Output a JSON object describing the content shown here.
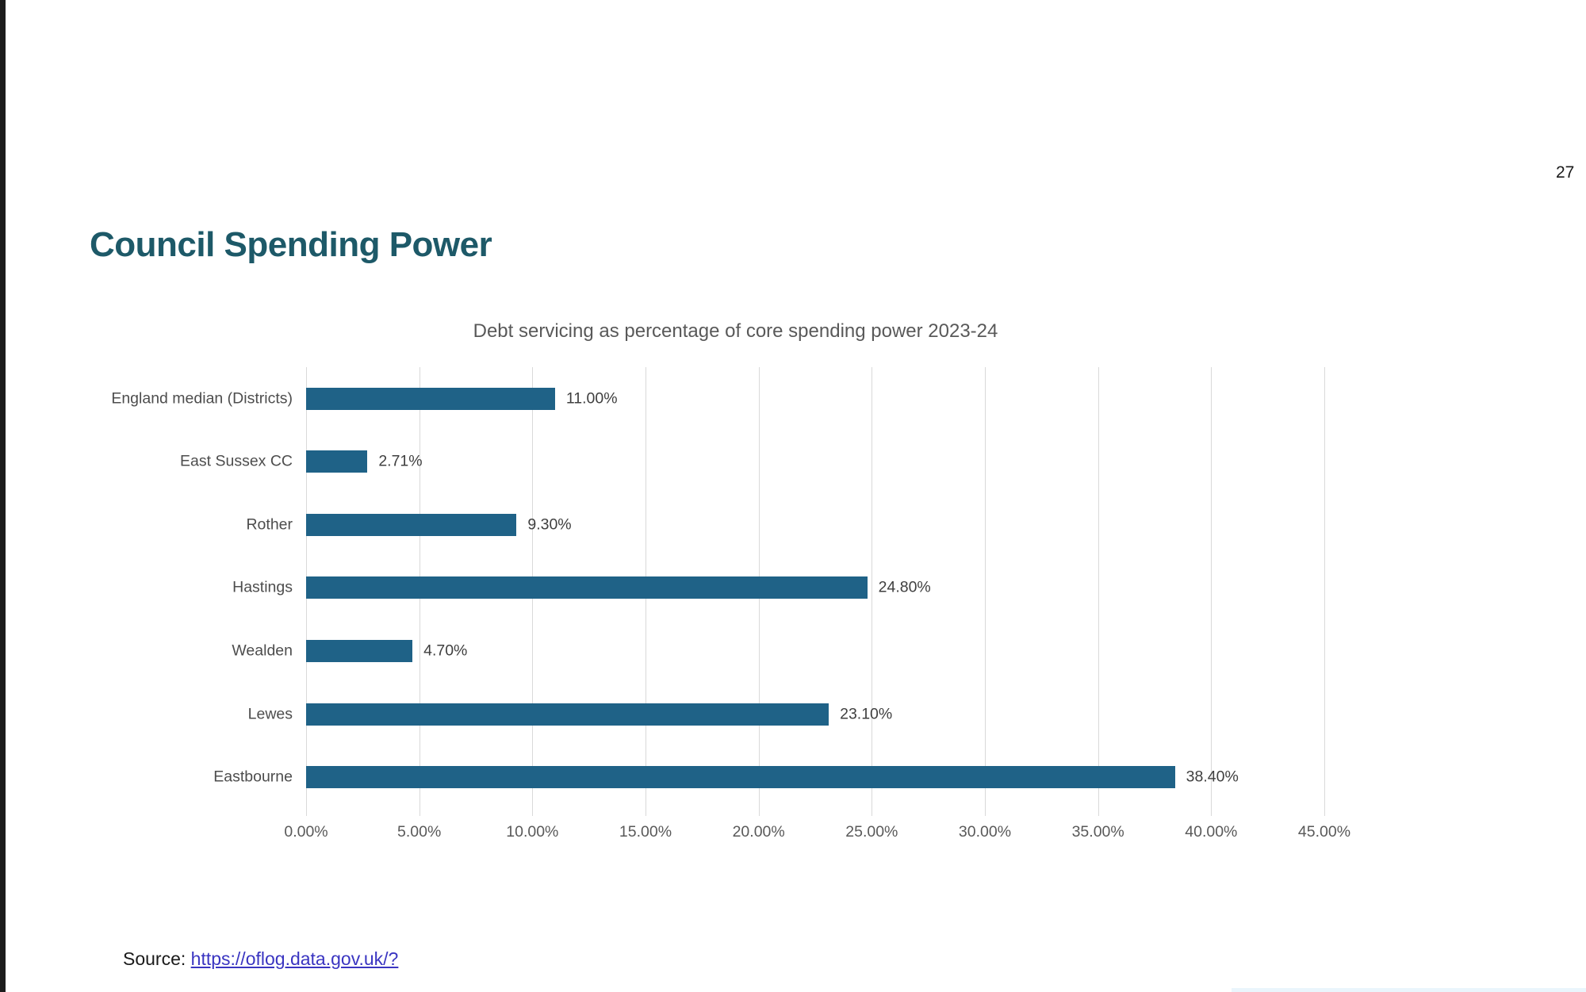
{
  "page": {
    "number": "27",
    "heading": "Council Spending Power",
    "accent_color": "#1d5968"
  },
  "chart_data": {
    "type": "bar",
    "orientation": "horizontal",
    "title": "Debt servicing as percentage of core spending power 2023-24",
    "categories": [
      "England median (Districts)",
      "East Sussex CC",
      "Rother",
      "Hastings",
      "Wealden",
      "Lewes",
      "Eastbourne"
    ],
    "values": [
      11.0,
      2.71,
      9.3,
      24.8,
      4.7,
      23.1,
      38.4
    ],
    "value_labels": [
      "11.00%",
      "2.71%",
      "9.30%",
      "24.80%",
      "4.70%",
      "23.10%",
      "38.40%"
    ],
    "xlim": [
      0,
      45
    ],
    "x_tick_values": [
      0,
      5,
      10,
      15,
      20,
      25,
      30,
      35,
      40,
      45
    ],
    "x_tick_labels": [
      "0.00%",
      "5.00%",
      "10.00%",
      "15.00%",
      "20.00%",
      "25.00%",
      "30.00%",
      "35.00%",
      "40.00%",
      "45.00%"
    ],
    "grid": true,
    "legend": "none",
    "bar_color": "#1f6287"
  },
  "source": {
    "label": "Source: ",
    "link_text": "https://oflog.data.gov.uk/?"
  }
}
